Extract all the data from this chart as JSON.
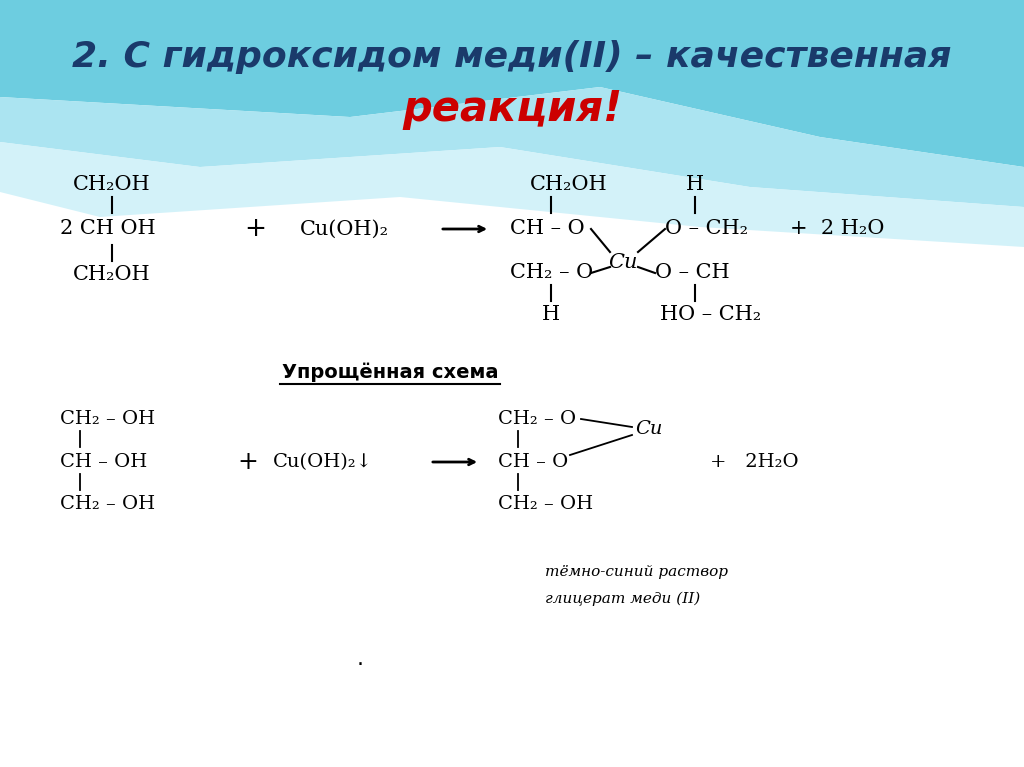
{
  "title_line1": "2. С гидроксидом меди(II) – качественная",
  "title_line2": "реакция!",
  "title_color1": "#1a3a6b",
  "title_color2": "#cc0000",
  "title_fontsize": 26,
  "simplified_label": "Упрощённая схема",
  "note_line1": "тёмно-синий раствор",
  "note_line2": "глицерат меди (II)",
  "fig_width": 10.24,
  "fig_height": 7.67,
  "dpi": 100
}
